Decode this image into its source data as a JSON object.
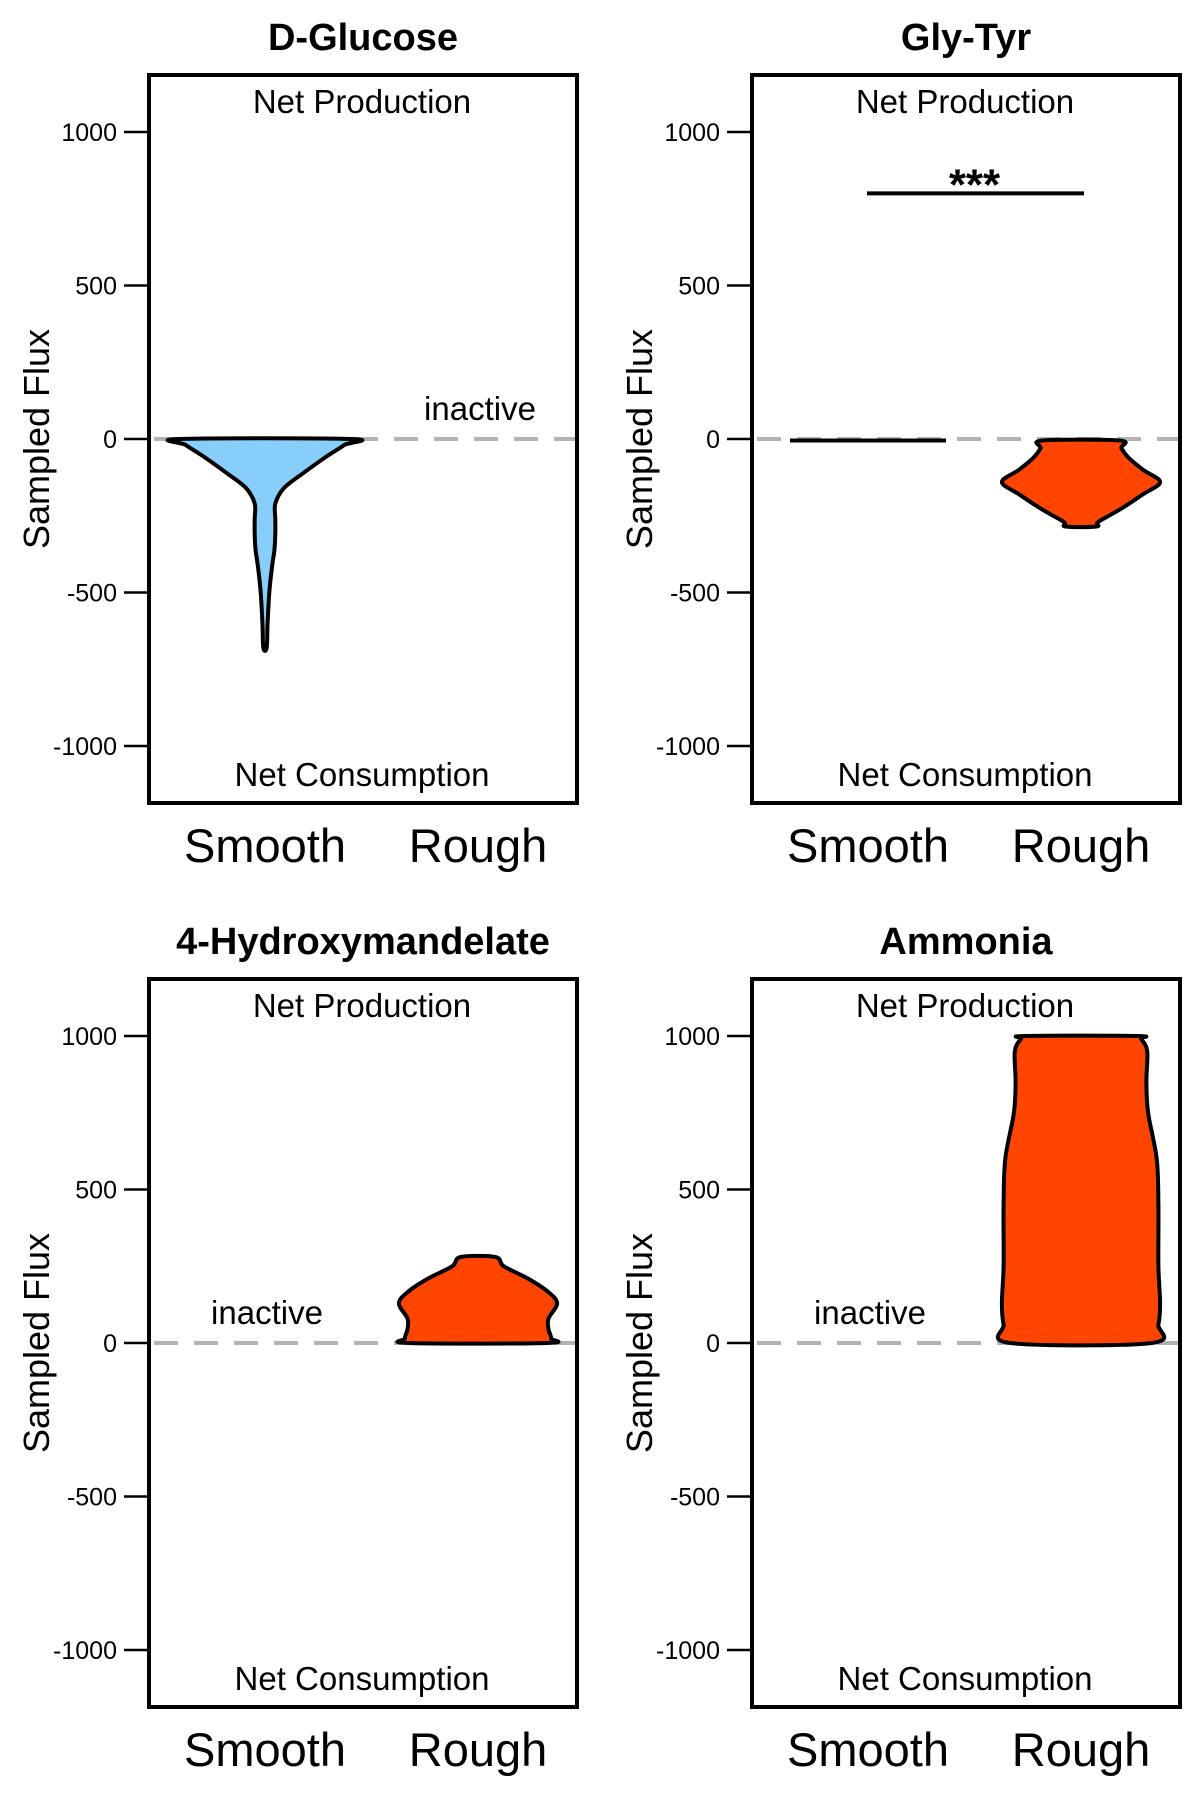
{
  "chart_data": [
    {
      "type": "violin",
      "title": "D-Glucose",
      "ylabel": "Sampled Flux",
      "ylim": [
        -1200,
        1200
      ],
      "yticks": [
        1000,
        500,
        0,
        -500,
        -1000
      ],
      "ytick_labels": [
        "1000",
        "500",
        "0",
        "-500",
        "-1000"
      ],
      "categories": [
        "Smooth",
        "Rough"
      ],
      "top_label": "Net Production",
      "bottom_label": "Net Consumption",
      "significance": "",
      "series": [
        {
          "category": "Smooth",
          "status": "active",
          "color": "#87cefa",
          "profile": [
            [
              0,
              1.0
            ],
            [
              -20,
              0.92
            ],
            [
              -60,
              0.7
            ],
            [
              -110,
              0.45
            ],
            [
              -160,
              0.22
            ],
            [
              -210,
              0.12
            ],
            [
              -260,
              0.12
            ],
            [
              -310,
              0.12
            ],
            [
              -360,
              0.11
            ],
            [
              -420,
              0.08
            ],
            [
              -500,
              0.05
            ],
            [
              -600,
              0.03
            ],
            [
              -680,
              0.02
            ]
          ]
        },
        {
          "category": "Rough",
          "status": "inactive",
          "label": "inactive"
        }
      ]
    },
    {
      "type": "violin",
      "title": "Gly-Tyr",
      "ylabel": "Sampled Flux",
      "ylim": [
        -1200,
        1200
      ],
      "yticks": [
        1000,
        500,
        0,
        -500,
        -1000
      ],
      "ytick_labels": [
        "1000",
        "500",
        "0",
        "-500",
        "-1000"
      ],
      "categories": [
        "Smooth",
        "Rough"
      ],
      "top_label": "Net Production",
      "bottom_label": "Net Consumption",
      "significance": "***",
      "significance_y": 800,
      "series": [
        {
          "category": "Smooth",
          "status": "line",
          "value": -5,
          "color": "#000000"
        },
        {
          "category": "Rough",
          "status": "active",
          "color": "#ff4500",
          "profile": [
            [
              -5,
              0.45
            ],
            [
              -30,
              0.47
            ],
            [
              -60,
              0.55
            ],
            [
              -100,
              0.72
            ],
            [
              -140,
              0.92
            ],
            [
              -180,
              0.72
            ],
            [
              -230,
              0.45
            ],
            [
              -270,
              0.2
            ],
            [
              -285,
              0.18
            ]
          ]
        }
      ]
    },
    {
      "type": "violin",
      "title": "4-Hydroxymandelate",
      "ylabel": "Sampled Flux",
      "ylim": [
        -1200,
        1200
      ],
      "yticks": [
        1000,
        500,
        0,
        -500,
        -1000
      ],
      "ytick_labels": [
        "1000",
        "500",
        "0",
        "-500",
        "-1000"
      ],
      "categories": [
        "Smooth",
        "Rough"
      ],
      "top_label": "Net Production",
      "bottom_label": "Net Consumption",
      "significance": "",
      "series": [
        {
          "category": "Smooth",
          "status": "inactive",
          "label": "inactive"
        },
        {
          "category": "Rough",
          "status": "active",
          "color": "#ff4500",
          "profile": [
            [
              0,
              0.8
            ],
            [
              15,
              0.85
            ],
            [
              45,
              0.82
            ],
            [
              80,
              0.82
            ],
            [
              130,
              0.92
            ],
            [
              170,
              0.8
            ],
            [
              210,
              0.58
            ],
            [
              250,
              0.3
            ],
            [
              280,
              0.2
            ]
          ]
        }
      ]
    },
    {
      "type": "violin",
      "title": "Ammonia",
      "ylabel": "Sampled Flux",
      "ylim": [
        -1200,
        1200
      ],
      "yticks": [
        1000,
        500,
        0,
        -500,
        -1000
      ],
      "ytick_labels": [
        "1000",
        "500",
        "0",
        "-500",
        "-1000"
      ],
      "categories": [
        "Smooth",
        "Rough"
      ],
      "top_label": "Net Production",
      "bottom_label": "Net Consumption",
      "significance": "",
      "series": [
        {
          "category": "Smooth",
          "status": "inactive",
          "label": "inactive"
        },
        {
          "category": "Rough",
          "status": "active",
          "color": "#ff4500",
          "profile": [
            [
              0,
              0.82
            ],
            [
              60,
              0.9
            ],
            [
              130,
              0.92
            ],
            [
              250,
              0.9
            ],
            [
              450,
              0.9
            ],
            [
              600,
              0.88
            ],
            [
              750,
              0.78
            ],
            [
              850,
              0.76
            ],
            [
              950,
              0.77
            ],
            [
              990,
              0.7
            ],
            [
              1000,
              0.65
            ]
          ]
        }
      ]
    }
  ]
}
